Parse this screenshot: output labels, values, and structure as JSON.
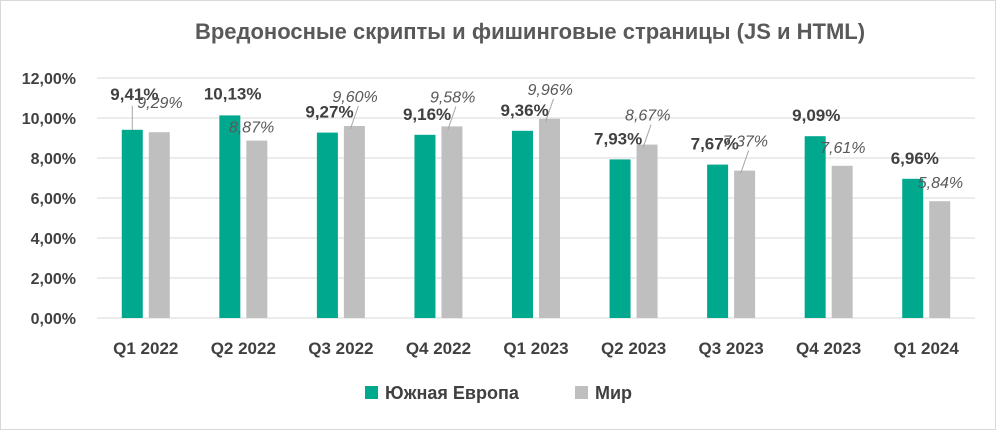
{
  "chart_data": {
    "type": "bar",
    "title": "Вредоносные скрипты и фишинговые страницы (JS и HTML)",
    "categories": [
      "Q1 2022",
      "Q2 2022",
      "Q3 2022",
      "Q4 2022",
      "Q1 2023",
      "Q2 2023",
      "Q3 2023",
      "Q4 2023",
      "Q1 2024"
    ],
    "series": [
      {
        "name": "Южная Европа",
        "color": "#00a88e",
        "values": [
          9.41,
          10.13,
          9.27,
          9.16,
          9.36,
          7.93,
          7.67,
          9.09,
          6.96
        ],
        "labels": [
          "9,41%",
          "10,13%",
          "9,27%",
          "9,16%",
          "9,36%",
          "7,93%",
          "7,67%",
          "9,09%",
          "6,96%"
        ]
      },
      {
        "name": "Мир",
        "color": "#bfbfbf",
        "values": [
          9.29,
          8.87,
          9.6,
          9.58,
          9.96,
          8.67,
          7.37,
          7.61,
          5.84
        ],
        "labels": [
          "9,29%",
          "8,87%",
          "9,60%",
          "9,58%",
          "9,96%",
          "8,67%",
          "7,37%",
          "7,61%",
          "5,84%"
        ]
      }
    ],
    "ylim": [
      0,
      12
    ],
    "yticks": [
      0,
      2,
      4,
      6,
      8,
      10,
      12
    ],
    "ytick_labels": [
      "0,00%",
      "2,00%",
      "4,00%",
      "6,00%",
      "8,00%",
      "10,00%",
      "12,00%"
    ],
    "xlabel": "",
    "ylabel": "",
    "grid": true,
    "legend": "bottom"
  }
}
